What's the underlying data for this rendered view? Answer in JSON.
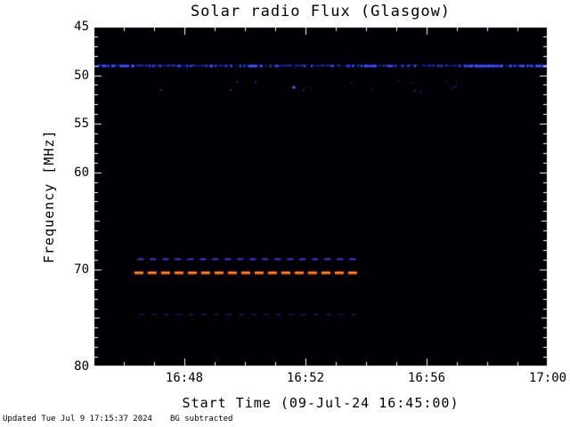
{
  "title": "Solar radio Flux (Glasgow)",
  "footer": {
    "updated": "Updated Tue Jul  9 17:15:37 2024",
    "note": "BG subtracted"
  },
  "chart_data": {
    "type": "heatmap",
    "title": "Solar radio Flux (Glasgow)",
    "xlabel": "Start Time (09-Jul-24 16:45:00)",
    "ylabel": "Frequency [MHz]",
    "background_color": "#000004",
    "axis_color": "#ffffff",
    "x_axis": {
      "min": 0,
      "max": 15,
      "unit": "minutes since 16:45",
      "tick_minutes": [
        3,
        7,
        11,
        15
      ],
      "tick_labels": [
        "16:48",
        "16:52",
        "16:56",
        "17:00"
      ],
      "minor_step_minutes": 1
    },
    "y_axis": {
      "min": 45,
      "max": 80,
      "inverted": true,
      "tick_values": [
        45,
        50,
        55,
        60,
        70,
        80
      ],
      "tick_labels": [
        "45",
        "50",
        "55",
        "60",
        "70",
        "80"
      ],
      "minor_step": 1
    },
    "noise": {
      "seed": 1337,
      "pixel_count": 2600,
      "streak_count": 80
    },
    "features": [
      {
        "name": "quiet-sun-band",
        "kind": "speckle-line",
        "freq_mhz": 49.0,
        "t_start": 0,
        "t_end": 15,
        "fill_prob": 0.85,
        "color_rgb": [
          60,
          80,
          255
        ],
        "bright_segments_t": [
          [
            0.15,
            1.35
          ],
          [
            5.1,
            5.5
          ],
          [
            8.9,
            9.4
          ],
          [
            12.2,
            13.5
          ],
          [
            14.1,
            15.0
          ]
        ]
      },
      {
        "name": "scatter-dots",
        "kind": "dots",
        "freq_low": 50.4,
        "freq_high": 51.8,
        "count": 16,
        "color_rgb": [
          44,
          60,
          208
        ],
        "bright_dot": {
          "t": 6.6,
          "freq": 51.2,
          "color": "#4a6cff"
        }
      },
      {
        "name": "drift-line-purple",
        "kind": "dashed",
        "freq_mhz": 68.9,
        "t_start": 1.45,
        "t_end": 8.7,
        "color": "rgba(90,50,230,0.95)",
        "width": 2,
        "dash": [
          7,
          7
        ]
      },
      {
        "name": "drift-line-orange",
        "kind": "dashed",
        "freq_mhz": 70.3,
        "t_start": 1.35,
        "t_end": 8.7,
        "color": "#e84d00",
        "core_color": "#ffa030",
        "width": 3.5,
        "dash": [
          10,
          5
        ]
      },
      {
        "name": "drift-line-faint",
        "kind": "dashed",
        "freq_mhz": 74.6,
        "t_start": 1.5,
        "t_end": 8.7,
        "color": "rgba(70,70,210,0.4)",
        "width": 1.5,
        "dash": [
          6,
          8
        ]
      }
    ]
  }
}
